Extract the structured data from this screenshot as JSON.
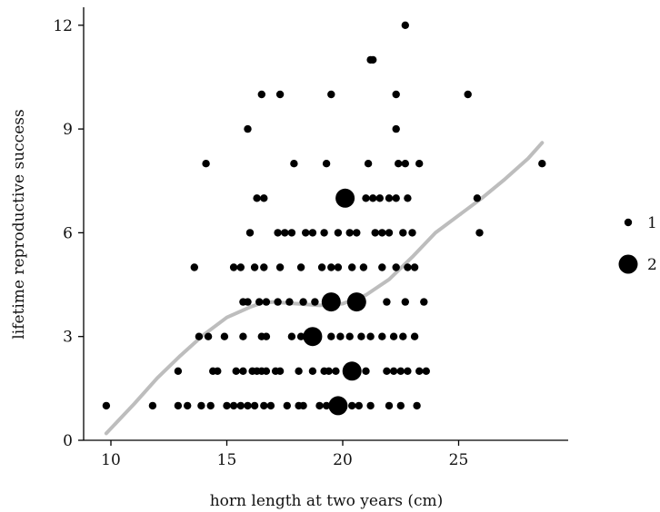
{
  "chart_data": {
    "type": "scatter",
    "title": "",
    "xlabel": "horn length at two years (cm)",
    "ylabel": "lifetime reproductive success",
    "xlim": [
      9,
      30
    ],
    "ylim": [
      0,
      12.5
    ],
    "x_ticks": [
      10,
      15,
      20,
      25
    ],
    "y_ticks": [
      0,
      3,
      6,
      9,
      12
    ],
    "x_tick_labels": [
      "10",
      "15",
      "20",
      "25"
    ],
    "y_tick_labels": [
      "0",
      "3",
      "6",
      "9",
      "12"
    ],
    "grid": false,
    "legend": {
      "position": "right",
      "entries": [
        {
          "label": "1",
          "size": 1
        },
        {
          "label": "2",
          "size": 2
        }
      ]
    },
    "colors": {
      "points": "#000000",
      "smooth": "#bdbdbd"
    },
    "points": [
      {
        "x": 9.8,
        "y": 1,
        "n": 1
      },
      {
        "x": 11.8,
        "y": 1,
        "n": 1
      },
      {
        "x": 12.9,
        "y": 1,
        "n": 1
      },
      {
        "x": 13.3,
        "y": 1,
        "n": 1
      },
      {
        "x": 13.9,
        "y": 1,
        "n": 1
      },
      {
        "x": 14.3,
        "y": 1,
        "n": 1
      },
      {
        "x": 15.0,
        "y": 1,
        "n": 1
      },
      {
        "x": 15.3,
        "y": 1,
        "n": 1
      },
      {
        "x": 15.6,
        "y": 1,
        "n": 1
      },
      {
        "x": 15.9,
        "y": 1,
        "n": 1
      },
      {
        "x": 16.2,
        "y": 1,
        "n": 1
      },
      {
        "x": 16.6,
        "y": 1,
        "n": 1
      },
      {
        "x": 16.9,
        "y": 1,
        "n": 1
      },
      {
        "x": 17.6,
        "y": 1,
        "n": 1
      },
      {
        "x": 18.1,
        "y": 1,
        "n": 1
      },
      {
        "x": 18.3,
        "y": 1,
        "n": 1
      },
      {
        "x": 19.0,
        "y": 1,
        "n": 1
      },
      {
        "x": 19.3,
        "y": 1,
        "n": 1
      },
      {
        "x": 19.8,
        "y": 1,
        "n": 2
      },
      {
        "x": 20.4,
        "y": 1,
        "n": 1
      },
      {
        "x": 20.7,
        "y": 1,
        "n": 1
      },
      {
        "x": 21.2,
        "y": 1,
        "n": 1
      },
      {
        "x": 22.0,
        "y": 1,
        "n": 1
      },
      {
        "x": 22.5,
        "y": 1,
        "n": 1
      },
      {
        "x": 23.2,
        "y": 1,
        "n": 1
      },
      {
        "x": 12.9,
        "y": 2,
        "n": 1
      },
      {
        "x": 14.4,
        "y": 2,
        "n": 1
      },
      {
        "x": 14.6,
        "y": 2,
        "n": 1
      },
      {
        "x": 15.4,
        "y": 2,
        "n": 1
      },
      {
        "x": 15.7,
        "y": 2,
        "n": 1
      },
      {
        "x": 16.1,
        "y": 2,
        "n": 1
      },
      {
        "x": 16.3,
        "y": 2,
        "n": 1
      },
      {
        "x": 16.5,
        "y": 2,
        "n": 1
      },
      {
        "x": 16.7,
        "y": 2,
        "n": 1
      },
      {
        "x": 17.1,
        "y": 2,
        "n": 1
      },
      {
        "x": 17.3,
        "y": 2,
        "n": 1
      },
      {
        "x": 18.1,
        "y": 2,
        "n": 1
      },
      {
        "x": 18.7,
        "y": 2,
        "n": 1
      },
      {
        "x": 19.2,
        "y": 2,
        "n": 1
      },
      {
        "x": 19.4,
        "y": 2,
        "n": 1
      },
      {
        "x": 19.7,
        "y": 2,
        "n": 1
      },
      {
        "x": 20.4,
        "y": 2,
        "n": 2
      },
      {
        "x": 21.0,
        "y": 2,
        "n": 1
      },
      {
        "x": 21.9,
        "y": 2,
        "n": 1
      },
      {
        "x": 22.2,
        "y": 2,
        "n": 1
      },
      {
        "x": 22.5,
        "y": 2,
        "n": 1
      },
      {
        "x": 22.8,
        "y": 2,
        "n": 1
      },
      {
        "x": 23.3,
        "y": 2,
        "n": 1
      },
      {
        "x": 23.6,
        "y": 2,
        "n": 1
      },
      {
        "x": 13.8,
        "y": 3,
        "n": 1
      },
      {
        "x": 14.2,
        "y": 3,
        "n": 1
      },
      {
        "x": 14.9,
        "y": 3,
        "n": 1
      },
      {
        "x": 15.7,
        "y": 3,
        "n": 1
      },
      {
        "x": 16.5,
        "y": 3,
        "n": 1
      },
      {
        "x": 16.7,
        "y": 3,
        "n": 1
      },
      {
        "x": 17.8,
        "y": 3,
        "n": 1
      },
      {
        "x": 18.2,
        "y": 3,
        "n": 1
      },
      {
        "x": 18.7,
        "y": 3,
        "n": 2
      },
      {
        "x": 19.5,
        "y": 3,
        "n": 1
      },
      {
        "x": 19.9,
        "y": 3,
        "n": 1
      },
      {
        "x": 20.3,
        "y": 3,
        "n": 1
      },
      {
        "x": 20.8,
        "y": 3,
        "n": 1
      },
      {
        "x": 21.2,
        "y": 3,
        "n": 1
      },
      {
        "x": 21.7,
        "y": 3,
        "n": 1
      },
      {
        "x": 22.2,
        "y": 3,
        "n": 1
      },
      {
        "x": 22.6,
        "y": 3,
        "n": 1
      },
      {
        "x": 23.1,
        "y": 3,
        "n": 1
      },
      {
        "x": 15.7,
        "y": 4,
        "n": 1
      },
      {
        "x": 15.9,
        "y": 4,
        "n": 1
      },
      {
        "x": 16.4,
        "y": 4,
        "n": 1
      },
      {
        "x": 16.7,
        "y": 4,
        "n": 1
      },
      {
        "x": 17.2,
        "y": 4,
        "n": 1
      },
      {
        "x": 17.7,
        "y": 4,
        "n": 1
      },
      {
        "x": 18.3,
        "y": 4,
        "n": 1
      },
      {
        "x": 18.8,
        "y": 4,
        "n": 1
      },
      {
        "x": 19.5,
        "y": 4,
        "n": 2
      },
      {
        "x": 20.6,
        "y": 4,
        "n": 2
      },
      {
        "x": 21.9,
        "y": 4,
        "n": 1
      },
      {
        "x": 22.7,
        "y": 4,
        "n": 1
      },
      {
        "x": 23.5,
        "y": 4,
        "n": 1
      },
      {
        "x": 13.6,
        "y": 5,
        "n": 1
      },
      {
        "x": 15.3,
        "y": 5,
        "n": 1
      },
      {
        "x": 15.6,
        "y": 5,
        "n": 1
      },
      {
        "x": 16.2,
        "y": 5,
        "n": 1
      },
      {
        "x": 16.6,
        "y": 5,
        "n": 1
      },
      {
        "x": 17.3,
        "y": 5,
        "n": 1
      },
      {
        "x": 18.2,
        "y": 5,
        "n": 1
      },
      {
        "x": 19.1,
        "y": 5,
        "n": 1
      },
      {
        "x": 19.5,
        "y": 5,
        "n": 1
      },
      {
        "x": 19.8,
        "y": 5,
        "n": 1
      },
      {
        "x": 20.4,
        "y": 5,
        "n": 1
      },
      {
        "x": 20.9,
        "y": 5,
        "n": 1
      },
      {
        "x": 21.7,
        "y": 5,
        "n": 1
      },
      {
        "x": 22.3,
        "y": 5,
        "n": 1
      },
      {
        "x": 22.8,
        "y": 5,
        "n": 1
      },
      {
        "x": 23.1,
        "y": 5,
        "n": 1
      },
      {
        "x": 16.0,
        "y": 6,
        "n": 1
      },
      {
        "x": 17.2,
        "y": 6,
        "n": 1
      },
      {
        "x": 17.5,
        "y": 6,
        "n": 1
      },
      {
        "x": 17.8,
        "y": 6,
        "n": 1
      },
      {
        "x": 18.4,
        "y": 6,
        "n": 1
      },
      {
        "x": 18.7,
        "y": 6,
        "n": 1
      },
      {
        "x": 19.2,
        "y": 6,
        "n": 1
      },
      {
        "x": 19.8,
        "y": 6,
        "n": 1
      },
      {
        "x": 20.3,
        "y": 6,
        "n": 1
      },
      {
        "x": 20.6,
        "y": 6,
        "n": 1
      },
      {
        "x": 21.4,
        "y": 6,
        "n": 1
      },
      {
        "x": 21.7,
        "y": 6,
        "n": 1
      },
      {
        "x": 22.0,
        "y": 6,
        "n": 1
      },
      {
        "x": 22.6,
        "y": 6,
        "n": 1
      },
      {
        "x": 23.0,
        "y": 6,
        "n": 1
      },
      {
        "x": 25.9,
        "y": 6,
        "n": 1
      },
      {
        "x": 16.3,
        "y": 7,
        "n": 1
      },
      {
        "x": 16.6,
        "y": 7,
        "n": 1
      },
      {
        "x": 20.1,
        "y": 7,
        "n": 2
      },
      {
        "x": 21.0,
        "y": 7,
        "n": 1
      },
      {
        "x": 21.3,
        "y": 7,
        "n": 1
      },
      {
        "x": 21.6,
        "y": 7,
        "n": 1
      },
      {
        "x": 22.0,
        "y": 7,
        "n": 1
      },
      {
        "x": 22.3,
        "y": 7,
        "n": 1
      },
      {
        "x": 22.8,
        "y": 7,
        "n": 1
      },
      {
        "x": 25.8,
        "y": 7,
        "n": 1
      },
      {
        "x": 14.1,
        "y": 8,
        "n": 1
      },
      {
        "x": 17.9,
        "y": 8,
        "n": 1
      },
      {
        "x": 19.3,
        "y": 8,
        "n": 1
      },
      {
        "x": 21.1,
        "y": 8,
        "n": 1
      },
      {
        "x": 22.4,
        "y": 8,
        "n": 1
      },
      {
        "x": 22.7,
        "y": 8,
        "n": 1
      },
      {
        "x": 23.3,
        "y": 8,
        "n": 1
      },
      {
        "x": 28.6,
        "y": 8,
        "n": 1
      },
      {
        "x": 15.9,
        "y": 9,
        "n": 1
      },
      {
        "x": 22.3,
        "y": 9,
        "n": 1
      },
      {
        "x": 16.5,
        "y": 10,
        "n": 1
      },
      {
        "x": 17.3,
        "y": 10,
        "n": 1
      },
      {
        "x": 19.5,
        "y": 10,
        "n": 1
      },
      {
        "x": 22.3,
        "y": 10,
        "n": 1
      },
      {
        "x": 25.4,
        "y": 10,
        "n": 1
      },
      {
        "x": 21.2,
        "y": 11,
        "n": 1
      },
      {
        "x": 21.3,
        "y": 11,
        "n": 1
      },
      {
        "x": 22.7,
        "y": 12,
        "n": 1
      }
    ],
    "smooth_line": {
      "x": [
        9.8,
        11.0,
        12.0,
        13.0,
        14.0,
        15.0,
        16.0,
        16.5,
        17.0,
        18.0,
        19.0,
        20.0,
        21.0,
        22.0,
        23.0,
        24.0,
        25.0,
        26.0,
        27.0,
        28.0,
        28.6
      ],
      "y": [
        0.2,
        1.05,
        1.8,
        2.45,
        3.05,
        3.55,
        3.85,
        3.97,
        4.0,
        3.95,
        3.9,
        3.95,
        4.2,
        4.65,
        5.3,
        6.0,
        6.5,
        7.0,
        7.55,
        8.15,
        8.6
      ]
    }
  }
}
